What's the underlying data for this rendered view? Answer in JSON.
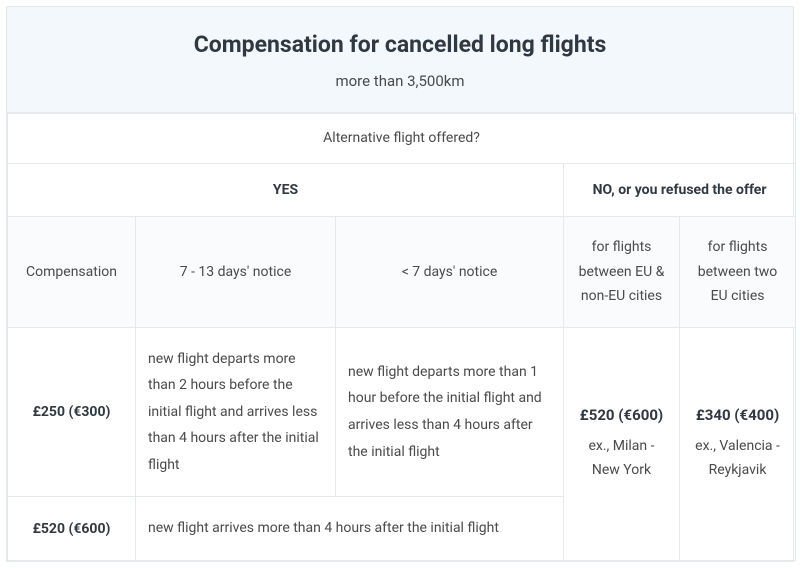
{
  "header": {
    "title": "Compensation for cancelled long flights",
    "subtitle": "more than 3,500km"
  },
  "table": {
    "alt_question": "Alternative flight offered?",
    "yes_label": "YES",
    "no_label": "NO, or you refused the offer",
    "col_labels": {
      "compensation": "Compensation",
      "notice_7_13": "7 - 13 days' notice",
      "notice_lt7": "< 7 days' notice",
      "eu_noneu": "for flights between EU & non-EU cities",
      "eu_eu": "for flights between two EU cities"
    },
    "rows": [
      {
        "amount": "£250 (€300)",
        "desc_7_13": "new flight departs more than 2 hours before the initial flight and arrives less than 4 hours after the initial flight",
        "desc_lt7": "new flight departs more than 1 hour before the initial flight and arrives less than 4 hours after the initial flight"
      },
      {
        "amount": "£520 (€600)",
        "desc_merged": "new flight arrives more than 4 hours after the initial flight"
      }
    ],
    "no_cells": {
      "eu_noneu_amount": "£520 (€600)",
      "eu_noneu_example": "ex., Milan - New York",
      "eu_eu_amount": "£340 (€400)",
      "eu_eu_example": "ex., Valencia - Reykjavik"
    }
  }
}
